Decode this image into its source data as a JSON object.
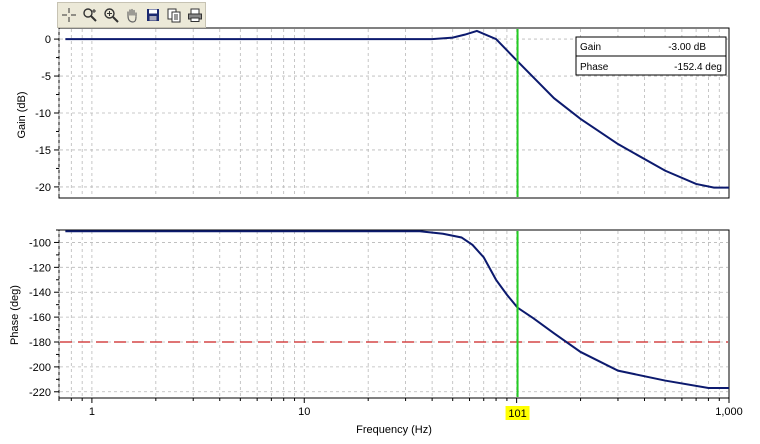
{
  "toolbar": {
    "buttons": [
      {
        "icon": "crosshair-icon",
        "name": "crosshair-button"
      },
      {
        "icon": "zoom-xy-icon",
        "name": "zoom-xy-button"
      },
      {
        "icon": "zoom-in-icon",
        "name": "zoom-in-button"
      },
      {
        "icon": "pan-hand-icon",
        "name": "pan-button"
      },
      {
        "icon": "save-disk-icon",
        "name": "save-button"
      },
      {
        "icon": "copy-icon",
        "name": "copy-button"
      },
      {
        "icon": "print-icon",
        "name": "print-button"
      }
    ]
  },
  "readout": {
    "gain_label": "Gain",
    "gain_value": "-3.00  dB",
    "phase_label": "Phase",
    "phase_value": "-152.4  deg"
  },
  "cursor": {
    "frequency": 101,
    "label": "101"
  },
  "colors": {
    "trace": "#0c1a6e",
    "cursor": "#22cc22",
    "reference": "#cc2222",
    "cursor_label_bg": "#ffff00"
  },
  "chart_data": [
    {
      "type": "line",
      "ylabel": "Gain (dB)",
      "x_scale": "log",
      "xlim": [
        0.7,
        1000
      ],
      "ylim": [
        -21.5,
        1.5
      ],
      "yticks": [
        0,
        -5,
        -10,
        -15,
        -20
      ],
      "grid": true,
      "x": [
        0.75,
        10,
        40,
        50,
        57,
        65,
        80,
        101,
        150,
        200,
        300,
        500,
        700,
        850,
        1000
      ],
      "y": [
        0.0,
        0.0,
        0.0,
        0.2,
        0.6,
        1.1,
        0.0,
        -3.0,
        -8.0,
        -10.8,
        -14.2,
        -17.8,
        -19.6,
        -20.1,
        -20.1
      ]
    },
    {
      "type": "line",
      "ylabel": "Phase (deg)",
      "xlabel": "Frequency (Hz)",
      "x_scale": "log",
      "xlim": [
        0.7,
        1000
      ],
      "ylim": [
        -225,
        -90
      ],
      "yticks": [
        -100,
        -120,
        -140,
        -160,
        -180,
        -200,
        -220
      ],
      "xtick_labels": [
        "1",
        "10",
        "1,000"
      ],
      "xtick_values": [
        1,
        10,
        1000
      ],
      "grid": true,
      "reference_line": -180,
      "x": [
        0.75,
        10,
        35,
        45,
        55,
        62,
        70,
        80,
        90,
        101,
        120,
        150,
        200,
        300,
        500,
        800,
        1000
      ],
      "y": [
        -91,
        -91,
        -91,
        -93,
        -96,
        -102,
        -112,
        -130,
        -142,
        -152.4,
        -161,
        -173,
        -188,
        -203,
        -211,
        -217,
        -217
      ]
    }
  ]
}
